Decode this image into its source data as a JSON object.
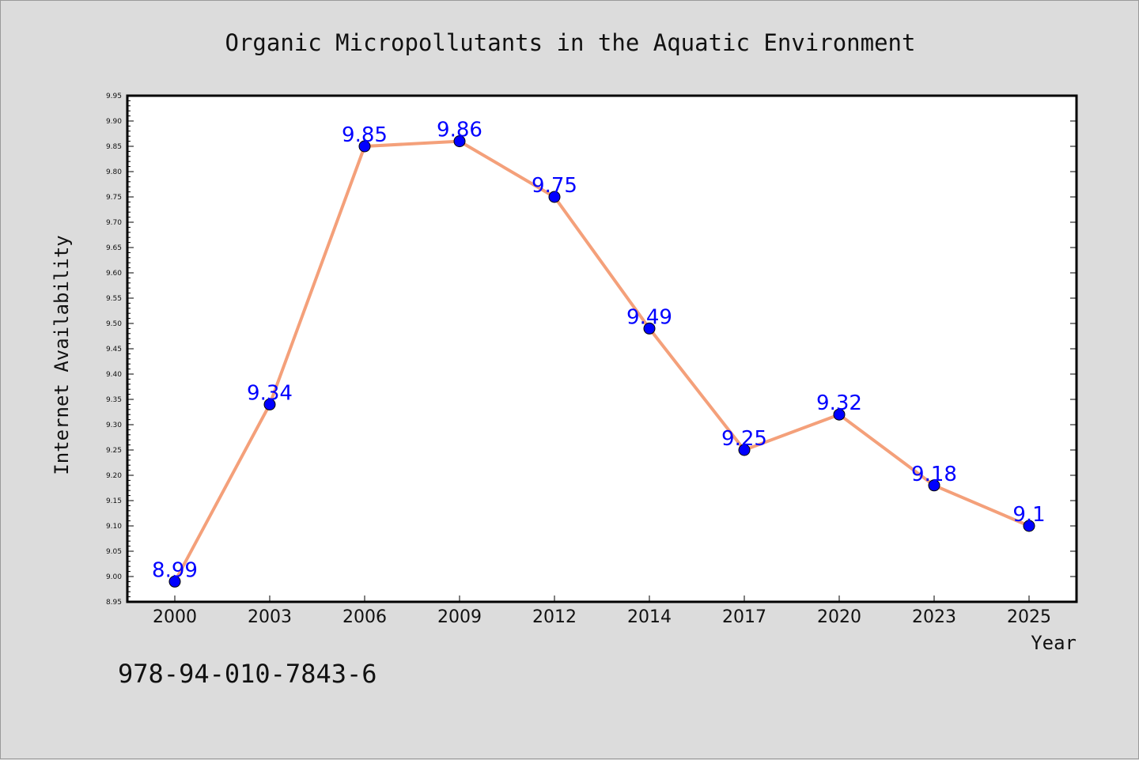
{
  "chart_data": {
    "type": "line",
    "title": "Organic Micropollutants in the Aquatic Environment",
    "xlabel": "Year",
    "ylabel": "Internet Availability",
    "categories": [
      "2000",
      "2003",
      "2006",
      "2009",
      "2012",
      "2014",
      "2017",
      "2020",
      "2023",
      "2025"
    ],
    "series": [
      {
        "values": [
          8.99,
          9.34,
          9.85,
          9.86,
          9.75,
          9.49,
          9.25,
          9.32,
          9.18,
          9.1
        ],
        "labels": [
          "8.99",
          "9.34",
          "9.85",
          "9.86",
          "9.75",
          "9.49",
          "9.25",
          "9.32",
          "9.18",
          "9.1"
        ],
        "line_color": "#f4a07a",
        "marker_color": "#0000ff",
        "label_color": "#0000ff"
      }
    ],
    "ylim": [
      8.95,
      9.95
    ],
    "ytick_step": 0.05,
    "grid": false,
    "legend": "none"
  },
  "footer_text": "978-94-010-7843-6"
}
